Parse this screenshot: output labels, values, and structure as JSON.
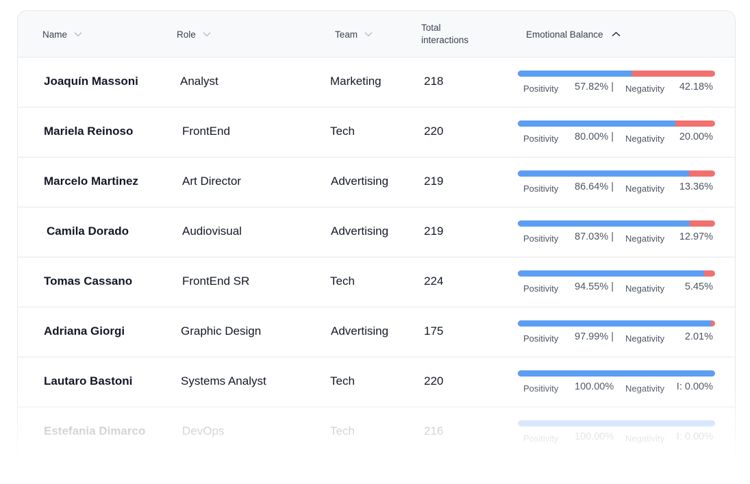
{
  "header": {
    "name": "Name",
    "role": "Role",
    "team": "Team",
    "total_line1": "Total",
    "total_line2": "interactions",
    "emotional_balance": "Emotional Balance"
  },
  "labels": {
    "positivity": "Positivity",
    "negativity": "Negativity"
  },
  "colors": {
    "positive": "#5b9ef3",
    "negative": "#f2716f"
  },
  "rows": [
    {
      "name": "Joaquín Massoni",
      "role": "Analyst",
      "team": "Marketing",
      "total": "218",
      "positivity": 57.82,
      "positivity_text": "57.82% |",
      "negativity_text": "42.18%"
    },
    {
      "name": "Mariela Reinoso",
      "role": "FrontEnd",
      "team": "Tech",
      "total": "220",
      "positivity": 80.0,
      "positivity_text": "80.00% |",
      "negativity_text": "20.00%"
    },
    {
      "name": "Marcelo Martinez",
      "role": "Art Director",
      "team": "Advertising",
      "total": "219",
      "positivity": 86.64,
      "positivity_text": "86.64% |",
      "negativity_text": "13.36%"
    },
    {
      "name": "Camila Dorado",
      "role": "Audiovisual",
      "team": "Advertising",
      "total": "219",
      "positivity": 87.03,
      "positivity_text": "87.03% |",
      "negativity_text": "12.97%"
    },
    {
      "name": "Tomas Cassano",
      "role": "FrontEnd SR",
      "team": "Tech",
      "total": "224",
      "positivity": 94.55,
      "positivity_text": "94.55% |",
      "negativity_text": "5.45%"
    },
    {
      "name": "Adriana Giorgi",
      "role": "Graphic Design",
      "team": "Advertising",
      "total": "175",
      "positivity": 97.99,
      "positivity_text": "97.99% |",
      "negativity_text": "2.01%"
    },
    {
      "name": "Lautaro Bastoni",
      "role": "Systems Analyst",
      "team": "Tech",
      "total": "220",
      "positivity": 100.0,
      "positivity_text": "100.00%",
      "negativity_text": "I: 0.00%"
    },
    {
      "name": "Estefania Dimarco",
      "role": "DevOps",
      "team": "Tech",
      "total": "216",
      "positivity": 100.0,
      "positivity_text": "100.00%",
      "negativity_text": "I: 0.00%"
    }
  ]
}
